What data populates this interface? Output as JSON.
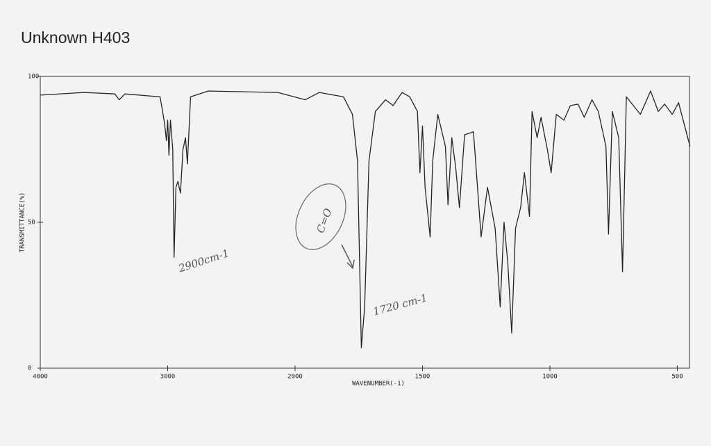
{
  "chart_data": {
    "type": "line",
    "title": "Unknown H403",
    "xlabel": "WAVENUMBER(-1)",
    "ylabel": "TRANSMITTANCE(%)",
    "annotations": [
      "2900cm-1",
      "C=O",
      "1720 cm-1"
    ],
    "color": "#222222",
    "x": [
      4000,
      3660,
      3415,
      3380,
      3335,
      3060,
      3040,
      3025,
      3010,
      3000,
      2990,
      2978,
      2960,
      2950,
      2935,
      2920,
      2900,
      2880,
      2860,
      2845,
      2820,
      2680,
      2135,
      1960,
      1905,
      1810,
      1775,
      1755,
      1740,
      1727,
      1710,
      1685,
      1645,
      1615,
      1600,
      1580,
      1550,
      1520,
      1510,
      1500,
      1490,
      1470,
      1460,
      1440,
      1410,
      1400,
      1385,
      1370,
      1355,
      1335,
      1300,
      1270,
      1245,
      1215,
      1195,
      1180,
      1165,
      1150,
      1135,
      1115,
      1100,
      1080,
      1070,
      1050,
      1035,
      1010,
      995,
      975,
      945,
      920,
      890,
      865,
      835,
      810,
      780,
      770,
      755,
      730,
      715,
      700,
      645,
      605,
      575,
      550,
      520,
      495,
      450
    ],
    "values": [
      93.6,
      94.5,
      94,
      92,
      94,
      93,
      88,
      84,
      78,
      85,
      73,
      85,
      75,
      38,
      62,
      64,
      60,
      75,
      79,
      70,
      93,
      95,
      94.5,
      92,
      94.5,
      93,
      87,
      71,
      7,
      21,
      71,
      88,
      92,
      90,
      92,
      94.5,
      93,
      88,
      67,
      83,
      62,
      45,
      71,
      87,
      76,
      56,
      79,
      69,
      55,
      80,
      81,
      45,
      62,
      48,
      21,
      50,
      36,
      12,
      48,
      55,
      67,
      52,
      88,
      79,
      86,
      75,
      67,
      87,
      85,
      90,
      90.5,
      86,
      92,
      88,
      76,
      46,
      88,
      79,
      33,
      93,
      87,
      95,
      88,
      90.5,
      87,
      91,
      76
    ],
    "xlim": [
      4000,
      450
    ],
    "xticks": [
      4000,
      3000,
      2000,
      1500,
      1000,
      500
    ],
    "ylim": [
      0,
      100
    ],
    "yticks": [
      0,
      50,
      100
    ]
  }
}
